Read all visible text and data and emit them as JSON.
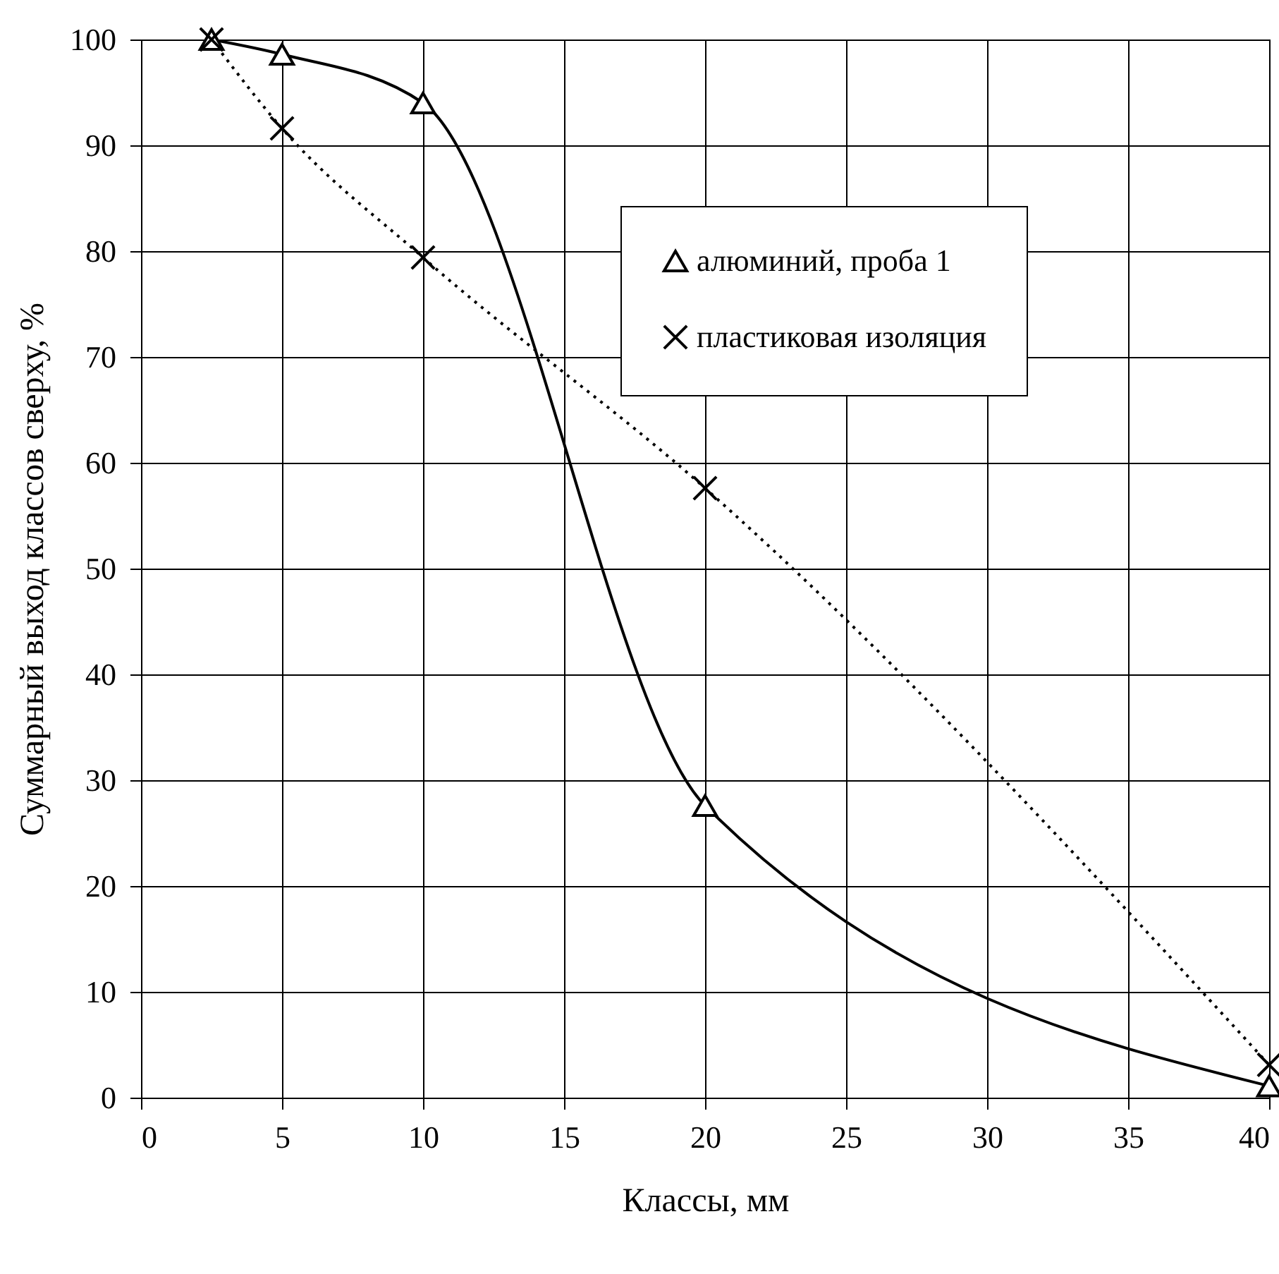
{
  "chart_data": {
    "type": "line",
    "xlabel": "Классы, мм",
    "ylabel": "Суммарный выход классов сверху, %",
    "x": [
      2.5,
      5,
      10,
      20,
      40
    ],
    "series": [
      {
        "name": "алюминий, проба 1",
        "color": "#000000",
        "values": [
          100,
          98.6,
          94,
          27.6,
          1.1
        ],
        "marker": "triangle",
        "line_style": "solid"
      },
      {
        "name": "пластиковая изоляция",
        "color": "#000000",
        "values": [
          100,
          91.6,
          79.4,
          57.6,
          3.1
        ],
        "marker": "cross",
        "line_style": "dotted"
      }
    ],
    "xlim": [
      0,
      40
    ],
    "xticks": [
      0,
      5,
      10,
      15,
      20,
      25,
      30,
      35,
      40
    ],
    "ylim": [
      0,
      100
    ],
    "yticks": [
      0,
      10,
      20,
      30,
      40,
      50,
      60,
      70,
      80,
      90,
      100
    ],
    "grid": true,
    "legend": "top right"
  }
}
